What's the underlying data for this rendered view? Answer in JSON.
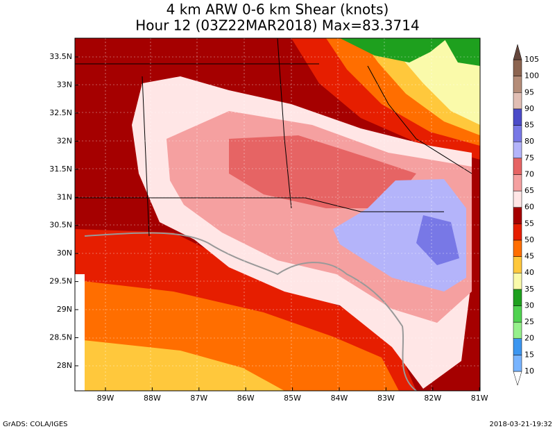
{
  "header": {
    "title": "4 km ARW 0-6 km Shear (knots)",
    "subtitle": "Hour 12 (03Z22MAR2018) Max=83.3714"
  },
  "map": {
    "lat_labels": [
      "33.5N",
      "33N",
      "32.5N",
      "32N",
      "31.5N",
      "31N",
      "30.5N",
      "30N",
      "29.5N",
      "29N",
      "28.5N",
      "28N"
    ],
    "lon_labels": [
      "89W",
      "88W",
      "87W",
      "86W",
      "85W",
      "84W",
      "83W",
      "82W",
      "81W"
    ]
  },
  "colorbar": {
    "labels": [
      10,
      15,
      20,
      25,
      30,
      35,
      40,
      45,
      50,
      55,
      60,
      65,
      70,
      75,
      80,
      85,
      90,
      95,
      100,
      105
    ],
    "colors": [
      "#ffffff",
      "#78b4ff",
      "#3c96f0",
      "#96f08c",
      "#50d250",
      "#1ea01e",
      "#fafaaa",
      "#ffc83c",
      "#ff6e00",
      "#e61e00",
      "#a50000",
      "#ffe6e6",
      "#f5a0a0",
      "#e66464",
      "#b4b4fa",
      "#7878e6",
      "#4b4bc8",
      "#e1beb4",
      "#b48c78",
      "#8c6450",
      "#64463c"
    ]
  },
  "footer": {
    "left": "GrADS: COLA/IGES",
    "right": "2018-03-21-19:32"
  }
}
